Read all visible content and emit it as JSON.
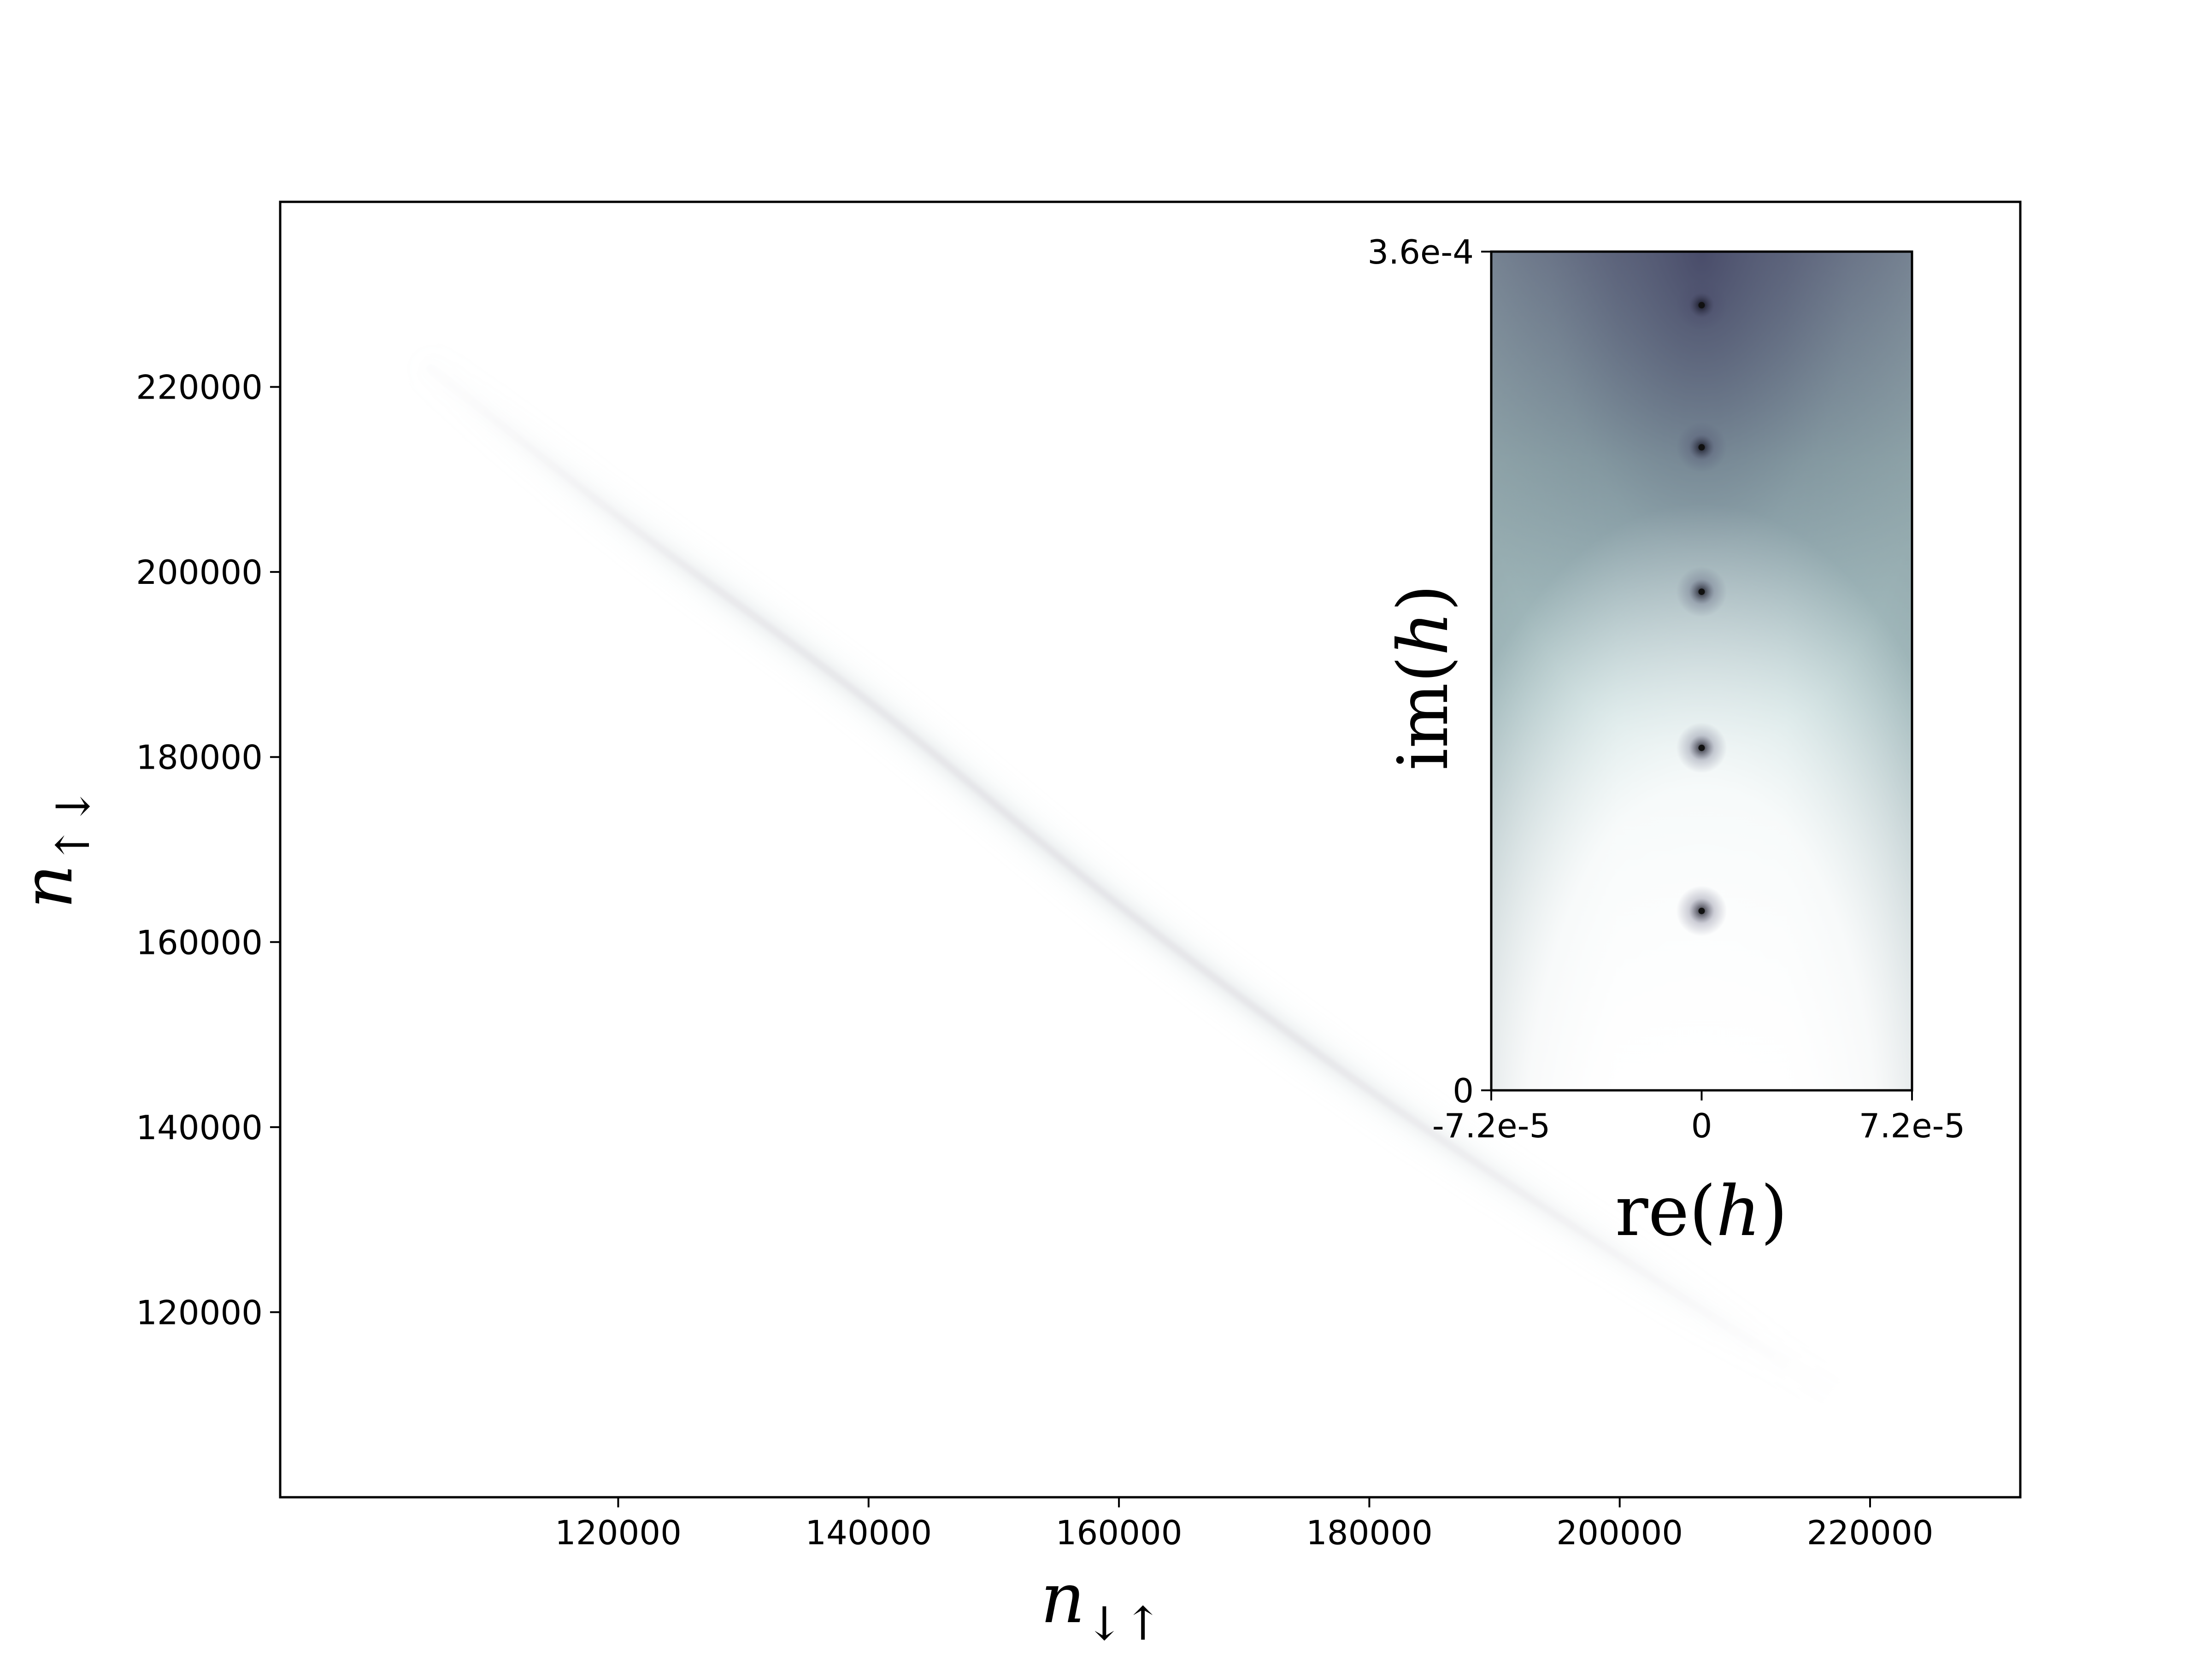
{
  "chart_data": [
    {
      "id": "main",
      "type": "heatmap",
      "title": "",
      "xlabel_main": "n",
      "xlabel_sub": "↓↑",
      "ylabel_main": "n",
      "ylabel_sub": "↑↓",
      "xlim": [
        93000,
        232000
      ],
      "ylim": [
        100000,
        240000
      ],
      "xticks": [
        120000,
        140000,
        160000,
        180000,
        200000,
        220000
      ],
      "xtick_labels": [
        "120000",
        "140000",
        "160000",
        "180000",
        "200000",
        "220000"
      ],
      "yticks": [
        120000,
        140000,
        160000,
        180000,
        200000,
        220000
      ],
      "ytick_labels": [
        "120000",
        "140000",
        "160000",
        "180000",
        "200000",
        "220000"
      ],
      "band": {
        "description_points": [
          [
            105000,
            222000
          ],
          [
            120000,
            206000
          ],
          [
            140000,
            186000
          ],
          [
            160000,
            164000
          ],
          [
            180000,
            144000
          ],
          [
            200000,
            126000
          ],
          [
            215000,
            113000
          ],
          [
            224000,
            106000
          ]
        ],
        "peak_region_x": [
          135000,
          185000
        ]
      },
      "colormap": [
        "#ffffff",
        "#c2dcdc",
        "#8aa4a9",
        "#4a4a6a",
        "#1a1a2a"
      ]
    },
    {
      "id": "inset",
      "type": "heatmap",
      "xlabel": "re(h)",
      "xlabel_func": "re",
      "xlabel_var": "h",
      "ylabel": "im(h)",
      "ylabel_func": "im",
      "ylabel_var": "h",
      "xlim": [
        -7.2e-05,
        7.2e-05
      ],
      "ylim": [
        0,
        0.00036
      ],
      "xticks": [
        -7.2e-05,
        0,
        7.2e-05
      ],
      "xtick_labels": [
        "-7.2e-5",
        "0",
        "7.2e-5"
      ],
      "yticks": [
        0,
        0.00036
      ],
      "ytick_labels": [
        "0",
        "3.6e-4"
      ],
      "zeros": [
        {
          "re": 0,
          "im": 0.000337
        },
        {
          "re": 0,
          "im": 0.000276
        },
        {
          "re": 0,
          "im": 0.000214
        },
        {
          "re": 0,
          "im": 0.000147
        },
        {
          "re": 0,
          "im": 7.7e-05
        }
      ]
    }
  ]
}
